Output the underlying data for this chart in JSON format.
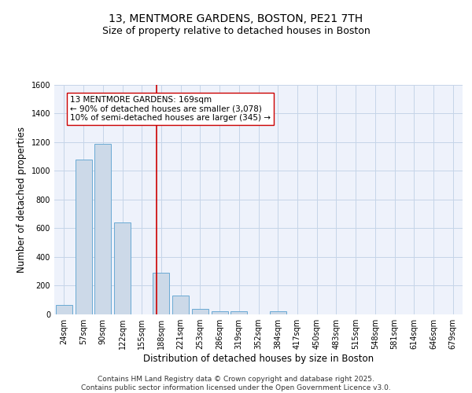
{
  "title_line1": "13, MENTMORE GARDENS, BOSTON, PE21 7TH",
  "title_line2": "Size of property relative to detached houses in Boston",
  "xlabel": "Distribution of detached houses by size in Boston",
  "ylabel": "Number of detached properties",
  "bar_color": "#ccd9e8",
  "bar_edge_color": "#6aaad4",
  "grid_color": "#c5d5e8",
  "bg_color": "#eef2fb",
  "bin_labels": [
    "24sqm",
    "57sqm",
    "90sqm",
    "122sqm",
    "155sqm",
    "188sqm",
    "221sqm",
    "253sqm",
    "286sqm",
    "319sqm",
    "352sqm",
    "384sqm",
    "417sqm",
    "450sqm",
    "483sqm",
    "515sqm",
    "548sqm",
    "581sqm",
    "614sqm",
    "646sqm",
    "679sqm"
  ],
  "bar_values": [
    65,
    1080,
    1185,
    640,
    0,
    290,
    130,
    40,
    20,
    20,
    0,
    20,
    0,
    0,
    0,
    0,
    0,
    0,
    0,
    0,
    0
  ],
  "vline_index": 4.75,
  "vline_color": "#cc0000",
  "annotation_text": "13 MENTMORE GARDENS: 169sqm\n← 90% of detached houses are smaller (3,078)\n10% of semi-detached houses are larger (345) →",
  "annotation_box_color": "#ffffff",
  "annotation_box_edge": "#cc0000",
  "ylim": [
    0,
    1600
  ],
  "yticks": [
    0,
    200,
    400,
    600,
    800,
    1000,
    1200,
    1400,
    1600
  ],
  "footer_text": "Contains HM Land Registry data © Crown copyright and database right 2025.\nContains public sector information licensed under the Open Government Licence v3.0.",
  "title_fontsize": 10,
  "subtitle_fontsize": 9,
  "axis_label_fontsize": 8.5,
  "tick_fontsize": 7,
  "annotation_fontsize": 7.5,
  "footer_fontsize": 6.5
}
